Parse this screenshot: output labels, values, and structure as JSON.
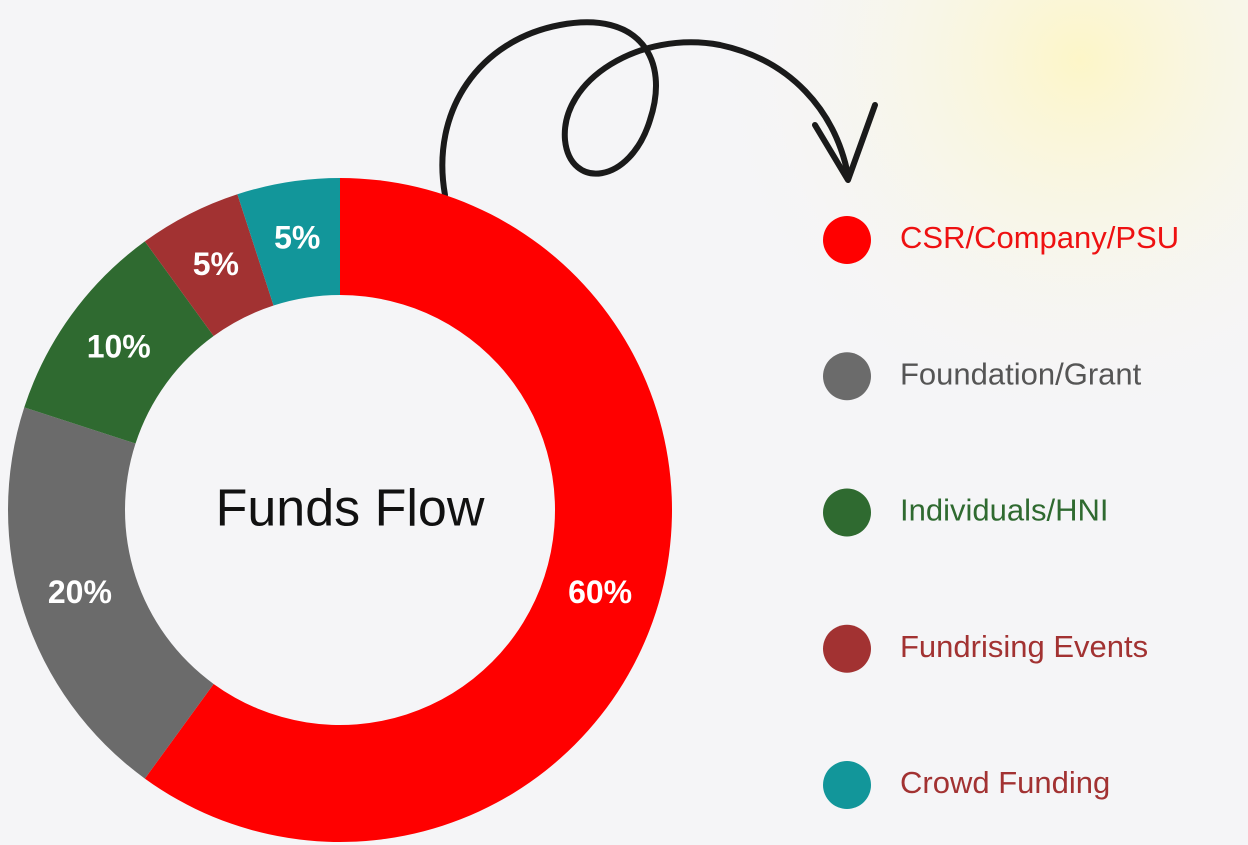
{
  "chart_data": {
    "type": "donut",
    "center_label": "Funds Flow",
    "categories": [
      "CSR/Company/PSU",
      "Foundation/Grant",
      "Individuals/HNI",
      "Fundrising Events",
      "Crowd Funding"
    ],
    "values": [
      60,
      20,
      10,
      5,
      5
    ],
    "value_labels": [
      "60%",
      "20%",
      "10%",
      "5%",
      "5%"
    ],
    "colors": [
      "#ff0000",
      "#6b6b6b",
      "#2f6a30",
      "#a23232",
      "#12969a"
    ],
    "legend_text_colors": [
      "#ee1111",
      "#555555",
      "#2f6a30",
      "#a23232",
      "#a23232"
    ],
    "legend": "right"
  }
}
